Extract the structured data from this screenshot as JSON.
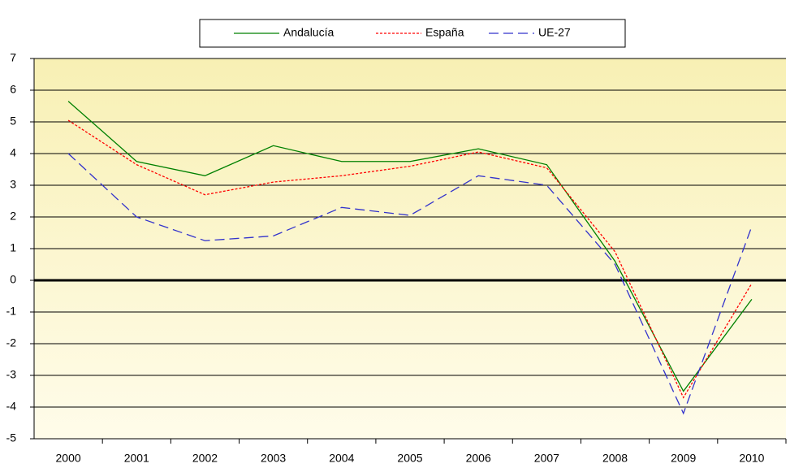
{
  "chart_data": {
    "type": "line",
    "categories": [
      "2000",
      "2001",
      "2002",
      "2003",
      "2004",
      "2005",
      "2006",
      "2007",
      "2008",
      "2009",
      "2010"
    ],
    "series": [
      {
        "name": "Andalucía",
        "color": "#008000",
        "dash": "solid",
        "values": [
          5.65,
          3.75,
          3.3,
          4.25,
          3.75,
          3.75,
          4.15,
          3.65,
          0.6,
          -3.5,
          -0.6
        ]
      },
      {
        "name": "España",
        "color": "#ff0000",
        "dash": "dotted",
        "values": [
          5.05,
          3.65,
          2.7,
          3.1,
          3.3,
          3.6,
          4.05,
          3.55,
          0.9,
          -3.7,
          -0.1
        ]
      },
      {
        "name": "UE-27",
        "color": "#3333cc",
        "dash": "dashed",
        "values": [
          4.0,
          2.0,
          1.25,
          1.4,
          2.3,
          2.05,
          3.3,
          3.0,
          0.5,
          -4.2,
          1.7
        ]
      }
    ],
    "ylim": [
      -5,
      7
    ],
    "yticks": [
      -5,
      -4,
      -3,
      -2,
      -1,
      0,
      1,
      2,
      3,
      4,
      5,
      6,
      7
    ],
    "grid": true
  }
}
